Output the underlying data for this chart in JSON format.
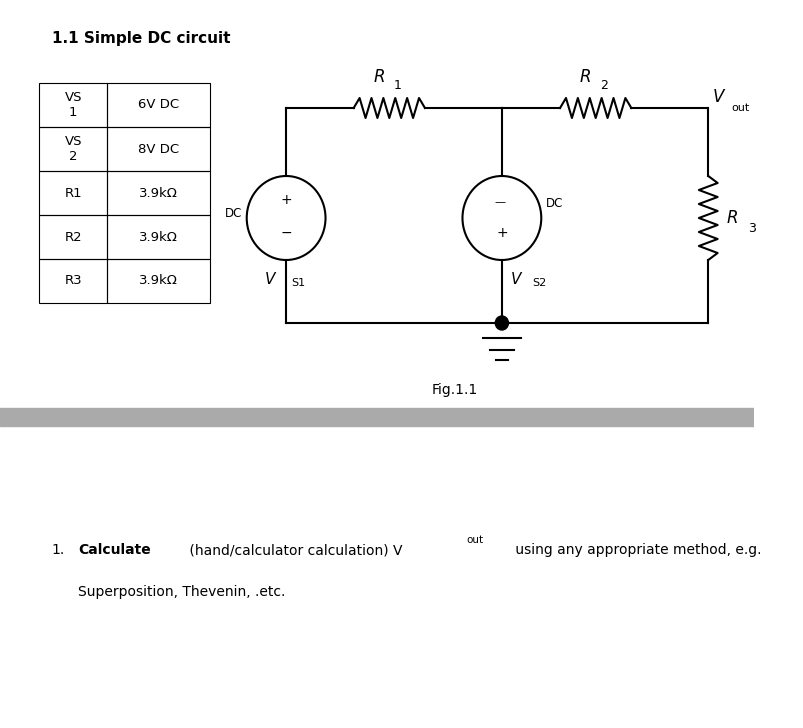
{
  "title": "1.1 Simple DC circuit",
  "fig_label": "Fig.1.1",
  "table": {
    "rows": [
      [
        "VS\n1",
        "6V DC"
      ],
      [
        "VS\n2",
        "8V DC"
      ],
      [
        "R1",
        "3.9kΩ"
      ],
      [
        "R2",
        "3.9kΩ"
      ],
      [
        "R3",
        "3.9kΩ"
      ]
    ]
  },
  "separator_color": "#aaaaaa",
  "bg_color": "#ffffff",
  "text_color": "#000000"
}
